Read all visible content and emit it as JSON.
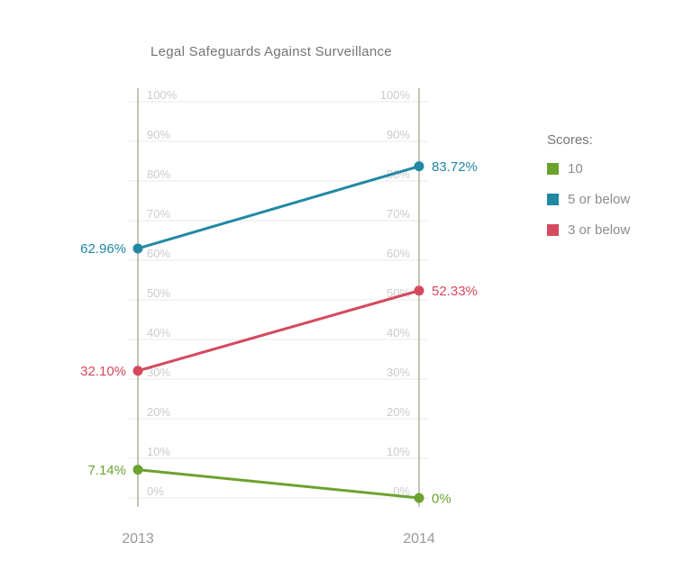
{
  "chart_data": {
    "type": "line",
    "subtype": "slope",
    "title": "Legal Safeguards Against Surveillance",
    "categories": [
      "2013",
      "2014"
    ],
    "series": [
      {
        "name": "10",
        "values": [
          7.14,
          0
        ],
        "labels": [
          "7.14%",
          "0%"
        ],
        "color": "#6ba32e"
      },
      {
        "name": "5 or below",
        "values": [
          62.96,
          83.72
        ],
        "labels": [
          "62.96%",
          "83.72%"
        ],
        "color": "#2188a3"
      },
      {
        "name": "3 or below",
        "values": [
          32.1,
          52.33
        ],
        "labels": [
          "32.10%",
          "52.33%"
        ],
        "color": "#d5495e"
      }
    ],
    "ylim": [
      0,
      100
    ],
    "ytick_step": 10,
    "ytick_suffix": "%",
    "grid": true,
    "legend_position": "right",
    "axis_color": "#b4af97",
    "grid_color": "#eaeae8",
    "tick_label_color": "#cbcbcb",
    "x_label_color": "#999999"
  },
  "legend": {
    "heading": "Scores:"
  }
}
